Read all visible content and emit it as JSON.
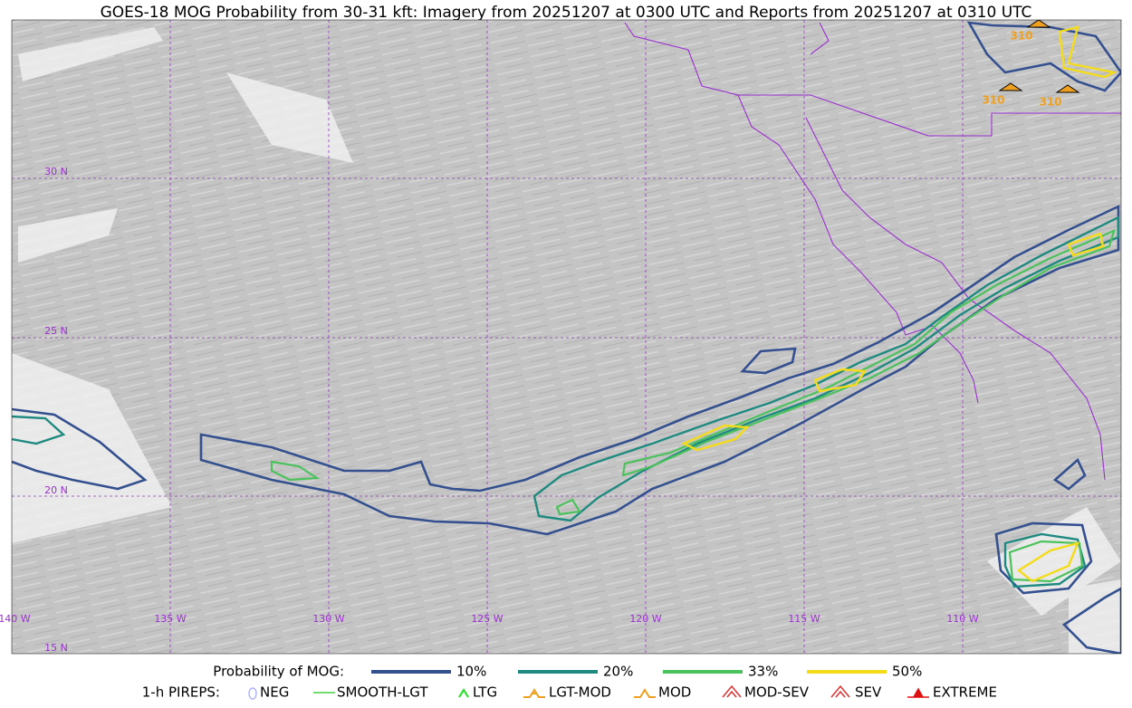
{
  "header": {
    "title": "GOES-18 MOG Probability from 30-31 kft: Imagery from 20251207 at 0300 UTC and Reports from 20251207 at 0310 UTC"
  },
  "map": {
    "lat_labels": [
      "30 N",
      "25 N",
      "20 N",
      "15 N"
    ],
    "lon_labels": [
      "140 W",
      "135 W",
      "130 W",
      "125 W",
      "120 W",
      "115 W",
      "110 W"
    ],
    "report_labels": [
      "310",
      "310",
      "310"
    ]
  },
  "legend": {
    "probability": {
      "label": "Probability of MOG:",
      "items": [
        {
          "label": "10%",
          "color": "#34508f"
        },
        {
          "label": "20%",
          "color": "#1f8a80"
        },
        {
          "label": "33%",
          "color": "#4cc25c"
        },
        {
          "label": "50%",
          "color": "#f5dc1a"
        }
      ]
    },
    "pireps": {
      "label": "1-h PIREPS:",
      "items": [
        {
          "label": "NEG",
          "color": "#b0b4ff"
        },
        {
          "label": "SMOOTH-LGT",
          "color": "#40d040"
        },
        {
          "label": "LTG",
          "color": "#20e020"
        },
        {
          "label": "LGT-MOD",
          "color": "#f0a020"
        },
        {
          "label": "MOD",
          "color": "#f0a020"
        },
        {
          "label": "MOD-SEV",
          "color": "#e03030"
        },
        {
          "label": "SEV",
          "color": "#e03030"
        },
        {
          "label": "EXTREME",
          "color": "#e01010"
        }
      ]
    }
  }
}
